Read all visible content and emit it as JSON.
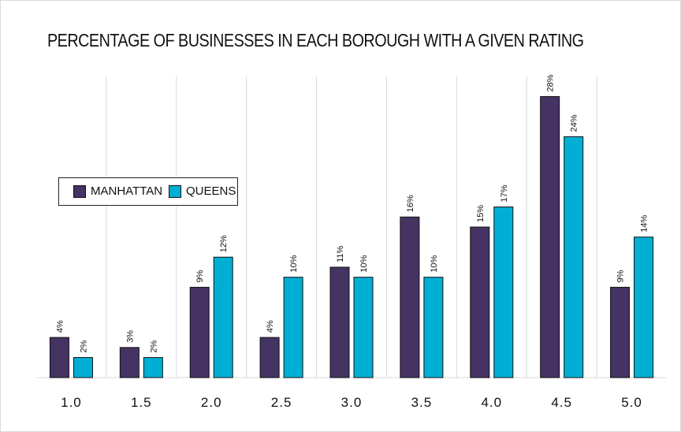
{
  "colors": {
    "manhattan": "#453363",
    "queens": "#00afd3"
  },
  "chart_data": {
    "type": "bar",
    "title": "PERCENTAGE OF BUSINESSES IN EACH BOROUGH WITH A GIVEN RATING",
    "xlabel": "",
    "ylabel": "",
    "categories": [
      "1.0",
      "1.5",
      "2.0",
      "2.5",
      "3.0",
      "3.5",
      "4.0",
      "4.5",
      "5.0"
    ],
    "series": [
      {
        "name": "MANHATTAN",
        "values": [
          4,
          3,
          9,
          4,
          11,
          16,
          15,
          28,
          9
        ],
        "labels": [
          "4%",
          "3%",
          "9%",
          "4%",
          "11%",
          "16%",
          "15%",
          "28%",
          "9%"
        ]
      },
      {
        "name": "QUEENS",
        "values": [
          2,
          2,
          12,
          10,
          10,
          10,
          17,
          24,
          14
        ],
        "labels": [
          "2%",
          "2%",
          "12%",
          "10%",
          "10%",
          "10%",
          "17%",
          "24%",
          "14%"
        ]
      }
    ],
    "ylim": [
      0,
      30
    ],
    "grid": "vertical category separators",
    "legend_position": "left-middle"
  }
}
